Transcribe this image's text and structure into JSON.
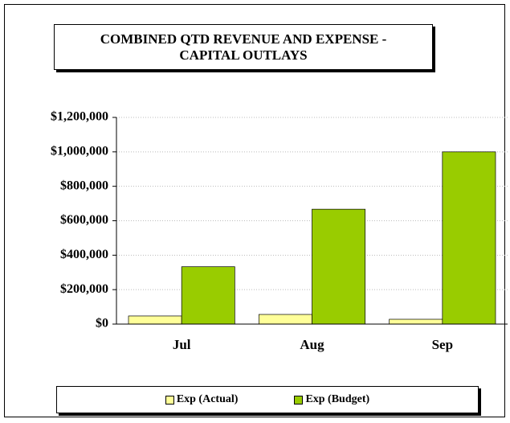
{
  "chart_data": {
    "type": "bar",
    "title": "COMBINED QTD REVENUE AND EXPENSE - CAPITAL OUTLAYS",
    "categories": [
      "Jul",
      "Aug",
      "Sep"
    ],
    "series": [
      {
        "name": "Exp (Actual)",
        "color": "#ffff99",
        "values": [
          47000,
          56000,
          28000
        ]
      },
      {
        "name": "Exp (Budget)",
        "color": "#99cc00",
        "values": [
          333000,
          667000,
          1000000
        ]
      }
    ],
    "ylim": [
      0,
      1200000
    ],
    "yticks": [
      {
        "value": 0,
        "label": "$0"
      },
      {
        "value": 200000,
        "label": "$200,000"
      },
      {
        "value": 400000,
        "label": "$400,000"
      },
      {
        "value": 600000,
        "label": "$600,000"
      },
      {
        "value": 800000,
        "label": "$800,000"
      },
      {
        "value": 1000000,
        "label": "$1,000,000"
      },
      {
        "value": 1200000,
        "label": "$1,200,000"
      }
    ],
    "grid": true,
    "legend": "bottom"
  }
}
